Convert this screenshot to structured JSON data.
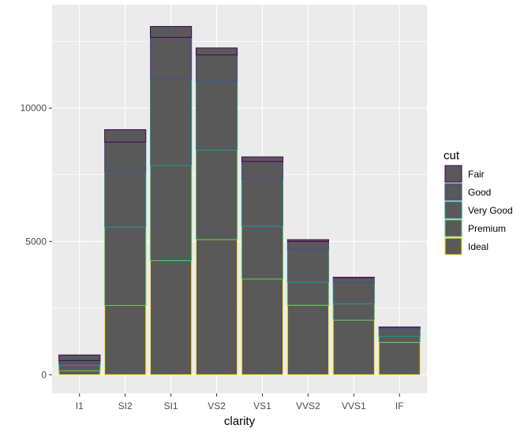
{
  "chart_data": {
    "type": "bar",
    "stacked": true,
    "title": "",
    "xlabel": "clarity",
    "ylabel": "",
    "categories": [
      "I1",
      "SI2",
      "SI1",
      "VS2",
      "VS1",
      "VVS2",
      "VVS1",
      "IF"
    ],
    "ylim": [
      0,
      13880
    ],
    "yticks": [
      0,
      5000,
      10000
    ],
    "ytick_labels": [
      "0",
      "5000",
      "10000"
    ],
    "grid": true,
    "legend_title": "cut",
    "legend_position": "right",
    "fill_color": "#595959",
    "panel_background": "#ebebeb",
    "series": [
      {
        "name": "Fair",
        "color": "#440154",
        "values": [
          210,
          466,
          408,
          261,
          170,
          69,
          17,
          9
        ]
      },
      {
        "name": "Good",
        "color": "#3b528b",
        "values": [
          96,
          1081,
          1560,
          978,
          648,
          286,
          186,
          71
        ]
      },
      {
        "name": "Very Good",
        "color": "#21908d",
        "values": [
          84,
          2100,
          3240,
          2591,
          1775,
          1235,
          789,
          268
        ]
      },
      {
        "name": "Premium",
        "color": "#5dc963",
        "values": [
          205,
          2949,
          3575,
          3357,
          1989,
          870,
          616,
          230
        ]
      },
      {
        "name": "Ideal",
        "color": "#fde725",
        "values": [
          146,
          2598,
          4282,
          5071,
          3589,
          2606,
          2047,
          1212
        ]
      }
    ]
  }
}
